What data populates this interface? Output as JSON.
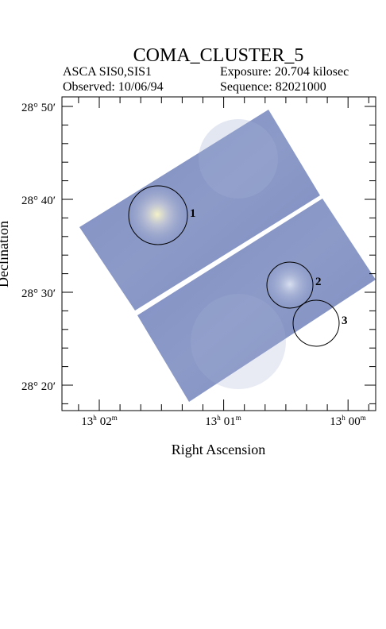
{
  "header": {
    "title": "COMA_CLUSTER_5",
    "instrument": "ASCA SIS0,SIS1",
    "exposure": "Exposure: 20.704 kilosec",
    "observed": "Observed: 10/06/94",
    "sequence": "Sequence: 82021000"
  },
  "axes": {
    "x_label": "Right Ascension",
    "y_label": "Declination",
    "y_ticks": [
      "28° 50′",
      "28° 40′",
      "28° 30′",
      "28° 20′"
    ],
    "x_ticks": [
      {
        "hour": "13",
        "hour_unit": "h",
        "minute": "02",
        "minute_unit": "m"
      },
      {
        "hour": "13",
        "hour_unit": "h",
        "minute": "01",
        "minute_unit": "m"
      },
      {
        "hour": "13",
        "hour_unit": "h",
        "minute": "00",
        "minute_unit": "m"
      }
    ]
  },
  "sources": [
    {
      "label": "1"
    },
    {
      "label": "2"
    },
    {
      "label": "3"
    }
  ]
}
